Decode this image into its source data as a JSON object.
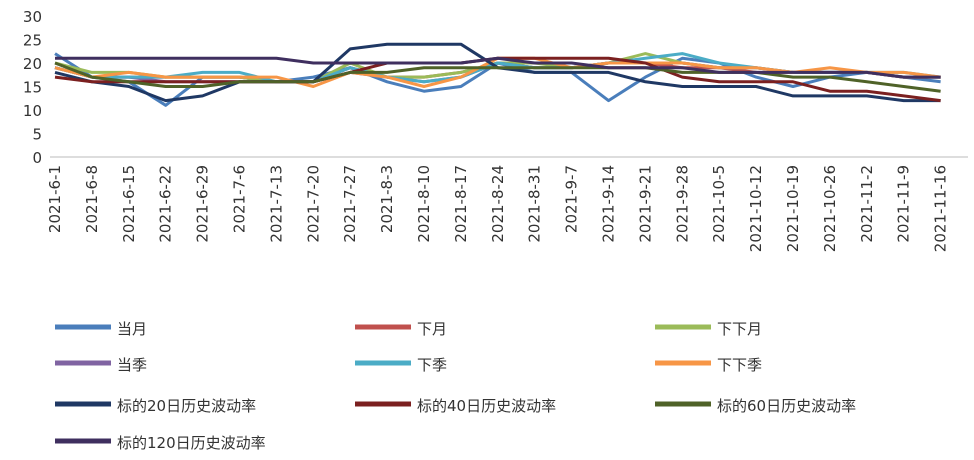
{
  "chart_data": {
    "type": "line",
    "categories": [
      "2021-6-1",
      "2021-6-8",
      "2021-6-15",
      "2021-6-22",
      "2021-6-29",
      "2021-7-6",
      "2021-7-13",
      "2021-7-20",
      "2021-7-27",
      "2021-8-3",
      "2021-8-10",
      "2021-8-17",
      "2021-8-24",
      "2021-8-31",
      "2021-9-7",
      "2021-9-14",
      "2021-9-21",
      "2021-9-28",
      "2021-10-5",
      "2021-10-12",
      "2021-10-19",
      "2021-10-26",
      "2021-11-2",
      "2021-11-9",
      "2021-11-16"
    ],
    "ylim": [
      0,
      30
    ],
    "yticks": [
      0,
      5,
      10,
      15,
      20,
      25,
      30
    ],
    "series": [
      {
        "name": "当月",
        "color": "#4a7ebb",
        "values": [
          22,
          17,
          16,
          11,
          17,
          17,
          16,
          17,
          19,
          16,
          14,
          15,
          20,
          18,
          18,
          12,
          17,
          21,
          20,
          17,
          15,
          17,
          18,
          17,
          16
        ]
      },
      {
        "name": "下月",
        "color": "#c0504d",
        "values": [
          19,
          17,
          17,
          17,
          17,
          17,
          16,
          16,
          19,
          17,
          17,
          18,
          20,
          19,
          19,
          20,
          20,
          19,
          19,
          18,
          18,
          18,
          18,
          17,
          17
        ]
      },
      {
        "name": "下下月",
        "color": "#9bbb59",
        "values": [
          20,
          18,
          18,
          17,
          17,
          17,
          16,
          16,
          20,
          17,
          17,
          18,
          20,
          20,
          19,
          20,
          22,
          20,
          19,
          19,
          18,
          18,
          18,
          17,
          17
        ]
      },
      {
        "name": "当季",
        "color": "#8064a2",
        "values": [
          19,
          17,
          17,
          16,
          16,
          16,
          16,
          16,
          18,
          17,
          16,
          17,
          20,
          19,
          19,
          20,
          20,
          20,
          19,
          19,
          18,
          18,
          18,
          17,
          17
        ]
      },
      {
        "name": "下季",
        "color": "#4bacc6",
        "values": [
          19,
          17,
          17,
          17,
          18,
          18,
          16,
          16,
          19,
          17,
          16,
          17,
          20,
          19,
          19,
          20,
          21,
          22,
          20,
          19,
          18,
          18,
          18,
          18,
          17
        ]
      },
      {
        "name": "下下季",
        "color": "#f79646",
        "values": [
          19,
          17,
          18,
          17,
          17,
          17,
          17,
          15,
          18,
          17,
          15,
          17,
          21,
          21,
          19,
          20,
          20,
          20,
          19,
          19,
          18,
          19,
          18,
          18,
          17
        ]
      },
      {
        "name": "标的20日历史波动率",
        "color": "#1f3864",
        "values": [
          18,
          16,
          15,
          12,
          13,
          16,
          16,
          16,
          23,
          24,
          24,
          24,
          19,
          18,
          18,
          18,
          16,
          15,
          15,
          15,
          13,
          13,
          13,
          12,
          12
        ]
      },
      {
        "name": "标的40日历史波动率",
        "color": "#7b2020",
        "values": [
          17,
          16,
          16,
          16,
          16,
          16,
          16,
          16,
          18,
          20,
          20,
          20,
          21,
          21,
          21,
          21,
          20,
          17,
          16,
          16,
          16,
          14,
          14,
          13,
          12
        ]
      },
      {
        "name": "标的60日历史波动率",
        "color": "#4f6228",
        "values": [
          20,
          17,
          16,
          15,
          15,
          16,
          16,
          16,
          18,
          18,
          19,
          19,
          19,
          19,
          19,
          19,
          19,
          18,
          18,
          18,
          17,
          17,
          16,
          15,
          14
        ]
      },
      {
        "name": "标的120日历史波动率",
        "color": "#3f2f5f",
        "values": [
          21,
          21,
          21,
          21,
          21,
          21,
          21,
          20,
          20,
          20,
          20,
          20,
          21,
          20,
          20,
          19,
          19,
          19,
          18,
          18,
          18,
          18,
          18,
          17,
          17
        ]
      }
    ]
  }
}
